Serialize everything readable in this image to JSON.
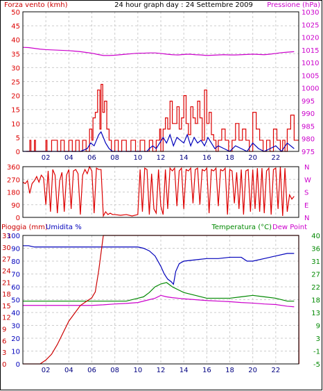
{
  "header": {
    "left_title": "Forza vento (kmh)",
    "center_title": "24 hour graph day : 24 Settembre 2009",
    "right_title": "Pressione (hPa)"
  },
  "lower_header": {
    "rain_label": "Pioggia (mm)",
    "hum_label": "Umidita %",
    "temp_label": "Temperatura (°C)",
    "dew_label": "Dew Point"
  },
  "colors": {
    "wind": "#dd0000",
    "gust": "#0000bb",
    "pressure": "#cc00cc",
    "direction": "#dd0000",
    "temperature": "#008800",
    "humidity": "#0000bb",
    "dewpoint": "#cc00cc",
    "rain": "#cc0000",
    "grid": "#cccccc"
  },
  "chart_data": [
    {
      "type": "line",
      "name": "wind-pressure",
      "xlabel": "",
      "x_ticks": [
        "02",
        "04",
        "06",
        "08",
        "10",
        "12",
        "14",
        "16",
        "18",
        "20",
        "22"
      ],
      "ylabel_left": "Forza vento (kmh)",
      "y_left_ticks": [
        0,
        5,
        10,
        15,
        20,
        25,
        30,
        35,
        40,
        45,
        50
      ],
      "ylim_left": [
        0,
        50
      ],
      "ylabel_right": "Pressione (hPa)",
      "y_right_ticks": [
        975,
        980,
        985,
        990,
        995,
        1000,
        1005,
        1010,
        1015,
        1020,
        1025,
        1030
      ],
      "ylim_right": [
        975,
        1030
      ],
      "grid": true,
      "series": [
        {
          "name": "Forza vento (kmh)",
          "axis": "left",
          "color": "#dd0000",
          "style": "step",
          "x": [
            0.3,
            0.6,
            0.7,
            1.0,
            1.1,
            2.0,
            2.1,
            2.5,
            3.0,
            3.3,
            3.6,
            4.0,
            4.3,
            4.6,
            4.9,
            5.2,
            5.5,
            5.8,
            6.0,
            6.1,
            6.3,
            6.5,
            6.7,
            6.8,
            6.95,
            7.1,
            7.3,
            7.5,
            7.7,
            8.0,
            8.3,
            8.6,
            9.0,
            9.4,
            9.8,
            10.2,
            10.6,
            11.0,
            11.3,
            11.6,
            11.9,
            12.0,
            12.2,
            12.4,
            12.6,
            12.8,
            13.0,
            13.2,
            13.4,
            13.6,
            13.8,
            14.0,
            14.2,
            14.4,
            14.6,
            14.8,
            15.0,
            15.2,
            15.4,
            15.6,
            15.8,
            16.0,
            16.2,
            16.4,
            16.6,
            16.8,
            17.0,
            17.3,
            17.6,
            17.9,
            18.2,
            18.5,
            18.8,
            19.1,
            19.4,
            19.7,
            20.0,
            20.3,
            20.6,
            20.9,
            21.2,
            21.5,
            21.8,
            22.1,
            22.4,
            22.6,
            22.8,
            23.0,
            23.3,
            23.6
          ],
          "values": [
            0,
            4,
            0,
            4,
            0,
            4,
            0,
            4,
            0,
            4,
            0,
            4,
            0,
            4,
            0,
            4,
            0,
            8,
            4,
            12,
            14,
            22,
            8,
            24,
            14,
            18,
            8,
            4,
            0,
            4,
            0,
            4,
            0,
            4,
            0,
            4,
            0,
            4,
            0,
            4,
            8,
            0,
            8,
            12,
            8,
            18,
            10,
            10,
            16,
            8,
            12,
            20,
            10,
            6,
            16,
            12,
            10,
            18,
            12,
            4,
            22,
            10,
            14,
            6,
            4,
            0,
            4,
            8,
            4,
            0,
            4,
            10,
            4,
            8,
            4,
            0,
            14,
            8,
            4,
            0,
            4,
            0,
            8,
            4,
            0,
            4,
            0,
            8,
            13,
            4
          ],
          "x_end": 24
        },
        {
          "name": "Raffica",
          "axis": "left",
          "color": "#0000bb",
          "style": "line",
          "x": [
            0,
            1,
            2,
            3,
            4,
            5,
            5.6,
            5.9,
            6.2,
            6.4,
            6.6,
            6.8,
            7.0,
            7.2,
            7.5,
            7.8,
            8,
            9,
            10,
            10.8,
            11,
            11.3,
            11.6,
            11.9,
            12.2,
            12.5,
            12.8,
            13.1,
            13.4,
            13.7,
            14,
            14.3,
            14.6,
            14.9,
            15.2,
            15.5,
            15.8,
            16.1,
            16.4,
            16.7,
            17,
            17.5,
            18,
            18.5,
            19,
            19.5,
            20,
            20.5,
            21,
            21.5,
            22,
            22.5,
            23,
            23.6
          ],
          "values": [
            0,
            0,
            0,
            0,
            0,
            0,
            1,
            3,
            2,
            4,
            6,
            7,
            5,
            3,
            1,
            0,
            0,
            0,
            0,
            0,
            1,
            2,
            1,
            3,
            5,
            3,
            6,
            2,
            5,
            4,
            3,
            6,
            2,
            5,
            3,
            4,
            2,
            5,
            3,
            1,
            2,
            1,
            0,
            2,
            1,
            0,
            3,
            1,
            0,
            1,
            2,
            0,
            3,
            1
          ]
        },
        {
          "name": "Pressione (hPa)",
          "axis": "right",
          "color": "#cc00cc",
          "style": "line",
          "x": [
            0,
            0.5,
            1,
            1.5,
            2,
            2.5,
            3,
            3.5,
            4,
            4.5,
            5,
            5.5,
            6,
            6.5,
            7,
            7.5,
            8,
            8.5,
            9,
            9.5,
            10,
            10.5,
            11,
            11.5,
            12,
            12.5,
            13,
            13.5,
            14,
            14.5,
            15,
            15.5,
            16,
            16.5,
            17,
            17.5,
            18,
            18.5,
            19,
            19.5,
            20,
            20.5,
            21,
            21.5,
            22,
            22.5,
            23,
            23.6
          ],
          "values": [
            1016.0,
            1015.9,
            1015.6,
            1015.3,
            1015.1,
            1015.0,
            1014.9,
            1014.8,
            1014.7,
            1014.5,
            1014.3,
            1014.0,
            1013.7,
            1013.2,
            1012.8,
            1012.8,
            1012.9,
            1013.1,
            1013.3,
            1013.5,
            1013.7,
            1013.7,
            1013.8,
            1013.8,
            1013.6,
            1013.3,
            1013.1,
            1013.0,
            1013.2,
            1013.3,
            1013.1,
            1013.0,
            1012.8,
            1012.9,
            1013.0,
            1013.1,
            1013.0,
            1013.0,
            1013.1,
            1013.2,
            1013.3,
            1013.2,
            1013.1,
            1013.3,
            1013.6,
            1013.9,
            1014.1,
            1014.3
          ]
        }
      ]
    },
    {
      "type": "line",
      "name": "wind-direction",
      "x_ticks": [
        "02",
        "04",
        "06",
        "08",
        "10",
        "12",
        "14",
        "16",
        "18",
        "20",
        "22"
      ],
      "y_ticks": [
        0,
        90,
        180,
        270,
        360
      ],
      "y_right_labels": [
        "N",
        "W",
        "S",
        "E",
        "N"
      ],
      "ylim": [
        0,
        360
      ],
      "grid": true,
      "series": [
        {
          "name": "Direzione",
          "color": "#dd0000",
          "style": "line",
          "x": [
            0,
            0.2,
            0.4,
            0.6,
            0.8,
            1.0,
            1.2,
            1.4,
            1.6,
            1.8,
            2.0,
            2.2,
            2.4,
            2.6,
            2.8,
            3.0,
            3.2,
            3.4,
            3.6,
            3.8,
            4.0,
            4.2,
            4.4,
            4.6,
            4.8,
            5.0,
            5.2,
            5.4,
            5.6,
            5.8,
            6.0,
            6.2,
            6.4,
            6.6,
            6.8,
            7.0,
            7.2,
            7.4,
            7.6,
            7.8,
            8.0,
            8.5,
            9.0,
            9.5,
            10.0,
            10.2,
            10.4,
            10.6,
            10.8,
            11.0,
            11.2,
            11.4,
            11.6,
            11.8,
            12.0,
            12.2,
            12.4,
            12.6,
            12.8,
            13.0,
            13.2,
            13.4,
            13.6,
            13.8,
            14.0,
            14.2,
            14.4,
            14.6,
            14.8,
            15.0,
            15.2,
            15.4,
            15.6,
            15.8,
            16.0,
            16.2,
            16.4,
            16.6,
            16.8,
            17.0,
            17.2,
            17.4,
            17.6,
            17.8,
            18.0,
            18.2,
            18.4,
            18.6,
            18.8,
            19.0,
            19.2,
            19.4,
            19.6,
            19.8,
            20.0,
            20.2,
            20.4,
            20.6,
            20.8,
            21.0,
            21.2,
            21.4,
            21.6,
            21.8,
            22.0,
            22.2,
            22.4,
            22.6,
            22.8,
            23.0,
            23.2,
            23.4,
            23.6
          ],
          "values": [
            250,
            240,
            260,
            170,
            240,
            260,
            290,
            250,
            300,
            280,
            90,
            330,
            40,
            340,
            300,
            30,
            260,
            320,
            40,
            300,
            340,
            60,
            330,
            340,
            310,
            20,
            300,
            340,
            310,
            360,
            330,
            30,
            350,
            340,
            340,
            10,
            40,
            20,
            30,
            20,
            20,
            15,
            20,
            10,
            20,
            340,
            40,
            350,
            340,
            20,
            310,
            60,
            30,
            340,
            80,
            20,
            340,
            60,
            350,
            330,
            350,
            80,
            330,
            350,
            60,
            340,
            330,
            350,
            100,
            340,
            350,
            90,
            340,
            330,
            350,
            30,
            340,
            330,
            350,
            80,
            340,
            330,
            350,
            20,
            340,
            330,
            100,
            320,
            60,
            340,
            20,
            330,
            340,
            40,
            340,
            60,
            350,
            40,
            350,
            30,
            330,
            350,
            20,
            340,
            350,
            60,
            360,
            10,
            350,
            40,
            160,
            130,
            150
          ]
        }
      ]
    },
    {
      "type": "line",
      "name": "rain-humidity-temperature",
      "x_ticks": [
        "02",
        "04",
        "06",
        "08",
        "10",
        "12",
        "14",
        "16",
        "18",
        "20",
        "22"
      ],
      "y_left_ticks_rain": [
        0,
        3,
        6,
        9,
        12,
        15,
        18,
        21,
        24,
        27,
        30,
        33
      ],
      "y_left_ticks_hum": [
        0,
        10,
        20,
        30,
        40,
        50,
        60,
        70,
        80,
        90,
        100
      ],
      "ylim_left": [
        0,
        100
      ],
      "y_right_ticks": [
        -5,
        -1,
        3,
        9,
        13,
        18,
        22,
        27,
        31,
        36,
        40
      ],
      "ylim_right": [
        -5,
        40
      ],
      "grid": true,
      "series": [
        {
          "name": "Umidita %",
          "axis": "left",
          "color": "#0000bb",
          "style": "line",
          "x": [
            0,
            0.5,
            1,
            2,
            3,
            4,
            5,
            6,
            7,
            8,
            9,
            10,
            10.5,
            11,
            11.5,
            12,
            12.3,
            12.6,
            12.9,
            13.1,
            13.3,
            13.6,
            14,
            15,
            16,
            17,
            18,
            19,
            19.5,
            20,
            21,
            22,
            23,
            23.6
          ],
          "values": [
            92,
            92,
            91,
            91,
            91,
            91,
            91,
            91,
            91,
            91,
            91,
            91,
            90,
            88,
            84,
            76,
            70,
            66,
            64,
            62,
            72,
            78,
            80,
            81,
            82,
            82,
            83,
            83,
            80,
            80,
            82,
            84,
            86,
            86
          ]
        },
        {
          "name": "Temperatura (°C)",
          "axis": "right",
          "color": "#008800",
          "style": "line",
          "x": [
            0,
            1,
            2,
            3,
            4,
            5,
            6,
            7,
            8,
            9,
            10,
            10.5,
            11,
            11.5,
            12,
            12.5,
            13,
            13.5,
            14,
            15,
            16,
            17,
            18,
            19,
            20,
            21,
            22,
            23,
            23.6
          ],
          "values": [
            17,
            17,
            17,
            17,
            17,
            17,
            17,
            17,
            17,
            17,
            18,
            18.5,
            20,
            22,
            23,
            23.5,
            22,
            21,
            20,
            19,
            18,
            18,
            18,
            18.5,
            19,
            18.5,
            18,
            17,
            17
          ]
        },
        {
          "name": "Dew Point",
          "axis": "right",
          "color": "#cc00cc",
          "style": "line",
          "x": [
            0,
            1,
            2,
            3,
            4,
            5,
            6,
            7,
            8,
            9,
            10,
            11,
            11.5,
            12,
            12.5,
            13,
            13.5,
            14,
            15,
            16,
            17,
            18,
            19,
            20,
            21,
            22,
            23,
            23.6
          ],
          "values": [
            15.5,
            15.5,
            15.5,
            15.5,
            15.5,
            15.5,
            15.5,
            15.7,
            16,
            16.2,
            16.5,
            17.5,
            18,
            19,
            18.5,
            18.2,
            18,
            17.8,
            17.5,
            17.2,
            17,
            16.8,
            16.5,
            16.3,
            16,
            15.8,
            15.2,
            15
          ]
        },
        {
          "name": "Pioggia (mm)",
          "axis": "rain",
          "color": "#cc0000",
          "style": "line",
          "x": [
            0,
            1.5,
            2,
            2.5,
            3,
            3.5,
            4,
            4.5,
            5,
            5.5,
            6,
            6.3,
            6.6,
            7.0,
            7.3,
            24,
            24.02
          ],
          "values": [
            0,
            0,
            1,
            2.5,
            5,
            8,
            11,
            13,
            15,
            16,
            17,
            18.5,
            24,
            33,
            33,
            33,
            0
          ]
        }
      ]
    }
  ]
}
